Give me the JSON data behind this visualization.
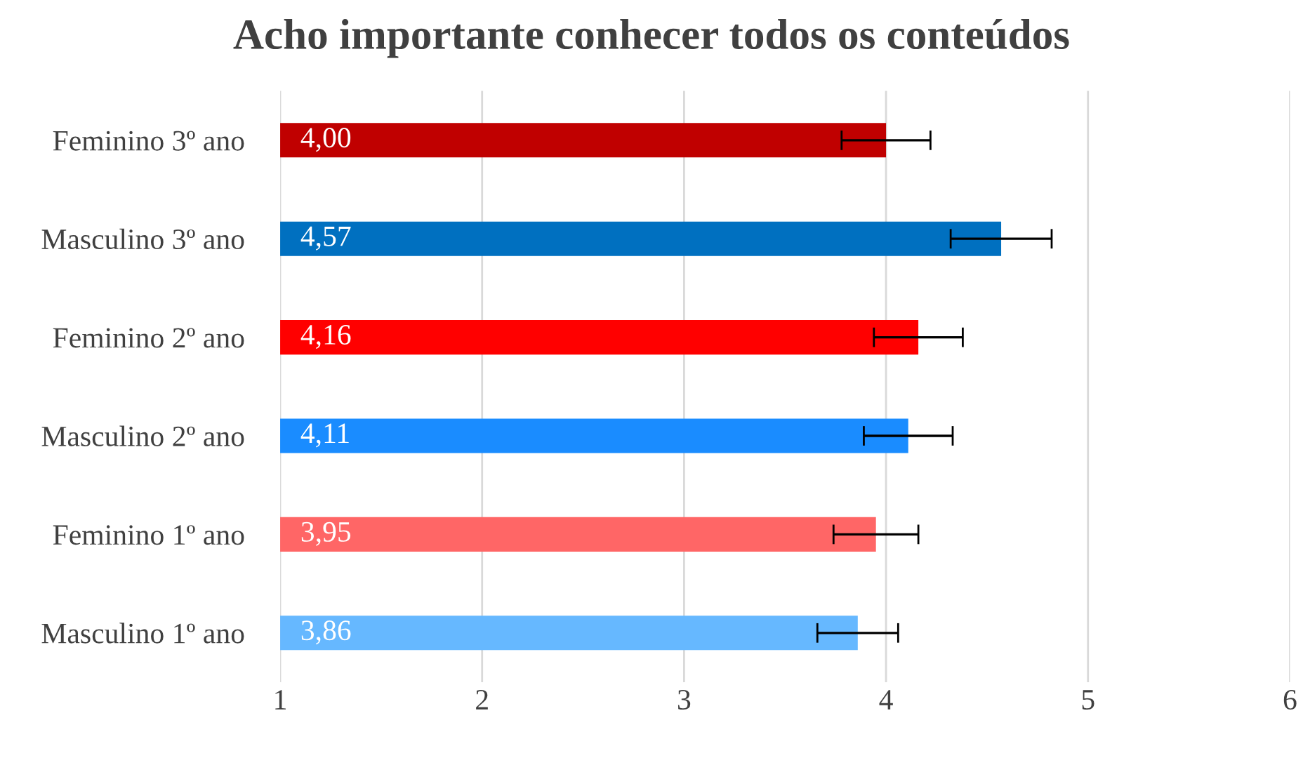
{
  "chart_data": {
    "type": "bar",
    "orientation": "horizontal",
    "title": "Acho importante conhecer todos os conteúdos",
    "categories": [
      "Feminino 3º ano",
      "Masculino 3º ano",
      "Feminino 2º ano",
      "Masculino 2º ano",
      "Feminino 1º ano",
      "Masculino 1º ano"
    ],
    "values": [
      4.0,
      4.57,
      4.16,
      4.11,
      3.95,
      3.86
    ],
    "colors": [
      "#c00000",
      "#0070c0",
      "#ff0000",
      "#1a8cff",
      "#ff6666",
      "#66b8ff"
    ],
    "errors": [
      0.22,
      0.25,
      0.22,
      0.22,
      0.21,
      0.2
    ],
    "value_labels": [
      "4,00",
      "4,57",
      "4,16",
      "4,11",
      "3,95",
      "3,86"
    ],
    "xlim": [
      1,
      6
    ],
    "xticks": [
      1,
      2,
      3,
      4,
      5,
      6
    ],
    "grid": "x"
  }
}
